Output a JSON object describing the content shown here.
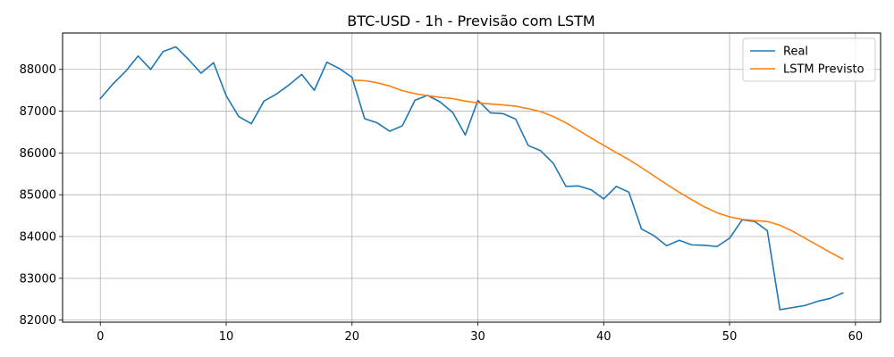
{
  "chart_data": {
    "type": "line",
    "title": "BTC-USD - 1h - Previsão com LSTM",
    "xlabel": "",
    "ylabel": "",
    "xlim": [
      -3,
      62
    ],
    "ylim": [
      81950,
      88870
    ],
    "xticks": [
      0,
      10,
      20,
      30,
      40,
      50,
      60
    ],
    "yticks": [
      82000,
      83000,
      84000,
      85000,
      86000,
      87000,
      88000
    ],
    "grid": true,
    "legend_position": "top-right",
    "series": [
      {
        "name": "Real",
        "color": "#1f77b4",
        "x": [
          0,
          1,
          2,
          3,
          4,
          5,
          6,
          7,
          8,
          9,
          10,
          11,
          12,
          13,
          14,
          15,
          16,
          17,
          18,
          19,
          20,
          21,
          22,
          23,
          24,
          25,
          26,
          27,
          28,
          29,
          30,
          31,
          32,
          33,
          34,
          35,
          36,
          37,
          38,
          39,
          40,
          41,
          42,
          43,
          44,
          45,
          46,
          47,
          48,
          49,
          50,
          51,
          52,
          53,
          54,
          55,
          56,
          57,
          58,
          59
        ],
        "values": [
          87300,
          87650,
          87950,
          88320,
          88000,
          88430,
          88540,
          88240,
          87910,
          88160,
          87370,
          86870,
          86700,
          87240,
          87410,
          87630,
          87880,
          87500,
          88170,
          88020,
          87810,
          86820,
          86720,
          86520,
          86650,
          87260,
          87380,
          87220,
          86970,
          86430,
          87260,
          86960,
          86940,
          86810,
          86180,
          86050,
          85750,
          85200,
          85210,
          85120,
          84900,
          85200,
          85060,
          84180,
          84020,
          83780,
          83910,
          83800,
          83790,
          83760,
          83960,
          84400,
          84360,
          84140,
          82250,
          82300,
          82350,
          82450,
          82520,
          82650
        ]
      },
      {
        "name": "LSTM Previsto",
        "color": "#ff7f0e",
        "x": [
          20,
          21,
          22,
          23,
          24,
          25,
          26,
          27,
          28,
          29,
          30,
          31,
          32,
          33,
          34,
          35,
          36,
          37,
          38,
          39,
          40,
          41,
          42,
          43,
          44,
          45,
          46,
          47,
          48,
          49,
          50,
          51,
          52,
          53,
          54,
          55,
          56,
          57,
          58,
          59
        ],
        "values": [
          87740,
          87730,
          87680,
          87600,
          87490,
          87420,
          87370,
          87330,
          87300,
          87240,
          87200,
          87170,
          87150,
          87120,
          87060,
          86990,
          86870,
          86720,
          86540,
          86360,
          86180,
          86010,
          85840,
          85650,
          85450,
          85250,
          85060,
          84880,
          84710,
          84570,
          84470,
          84410,
          84380,
          84360,
          84270,
          84130,
          83960,
          83790,
          83620,
          83460
        ]
      }
    ]
  }
}
